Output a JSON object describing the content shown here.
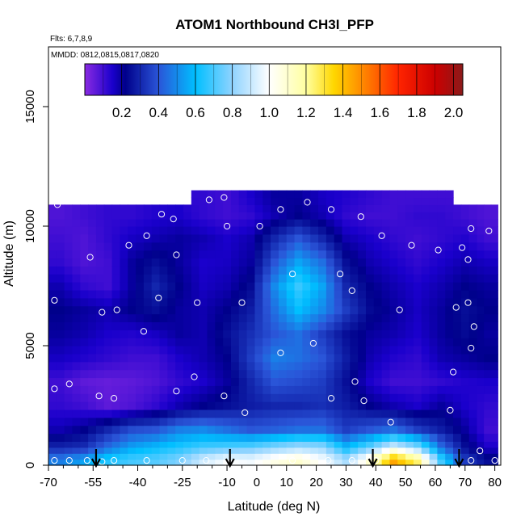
{
  "chart_data": {
    "type": "heatmap",
    "title": "ATOM1 Northbound CH3I_PFP",
    "flights_label": "Flts: 6,7,8,9",
    "dates_label": "MMDD: 0812,0815,0817,0820",
    "xlabel": "Latitude (deg N)",
    "ylabel": "Altitude (m)",
    "xlim": [
      -70,
      82
    ],
    "ylim": [
      0,
      17500
    ],
    "x_ticks": [
      -70,
      -55,
      -40,
      -25,
      -10,
      0,
      10,
      20,
      30,
      40,
      50,
      60,
      70,
      80
    ],
    "x_tick_labels": [
      "-70",
      "-55",
      "-40",
      "-25",
      "-10",
      "0",
      "10",
      "20",
      "30",
      "40",
      "50",
      "60",
      "70",
      "80"
    ],
    "x_minor_ticks": [
      -65,
      -60,
      -50,
      -45,
      -35,
      -30,
      -20,
      -15,
      -5,
      5,
      15,
      25,
      35,
      45,
      55,
      65,
      75
    ],
    "y_ticks": [
      0,
      5000,
      10000,
      15000
    ],
    "y_tick_labels": [
      "0",
      "5000",
      "10000",
      "15000"
    ],
    "colorbar": {
      "range": [
        0.0,
        2.05
      ],
      "ticks": [
        0.2,
        0.4,
        0.6,
        0.8,
        1.0,
        1.2,
        1.4,
        1.6,
        1.8,
        2.0
      ],
      "tick_labels": [
        "0.2",
        "0.4",
        "0.6",
        "0.8",
        "1.0",
        "1.2",
        "1.4",
        "1.6",
        "1.8",
        "2.0"
      ],
      "stops": [
        {
          "v": 0.0,
          "color": "#8a2be2"
        },
        {
          "v": 0.15,
          "color": "#1a00cc"
        },
        {
          "v": 0.22,
          "color": "#00008b"
        },
        {
          "v": 0.4,
          "color": "#2a55d8"
        },
        {
          "v": 0.6,
          "color": "#00bfff"
        },
        {
          "v": 0.8,
          "color": "#8fd3ff"
        },
        {
          "v": 1.0,
          "color": "#ffffff"
        },
        {
          "v": 1.2,
          "color": "#ffffa0"
        },
        {
          "v": 1.35,
          "color": "#ffd700"
        },
        {
          "v": 1.5,
          "color": "#ff8c00"
        },
        {
          "v": 1.7,
          "color": "#ff2400"
        },
        {
          "v": 1.9,
          "color": "#cc0000"
        },
        {
          "v": 2.05,
          "color": "#8b1a1a"
        }
      ]
    },
    "field": {
      "lat_edges": [
        -70,
        -62,
        -54,
        -46,
        -38,
        -30,
        -22,
        -14,
        -6,
        2,
        10,
        18,
        26,
        34,
        42,
        50,
        58,
        66,
        74,
        81
      ],
      "alt_edges": [
        0,
        500,
        1000,
        2000,
        3000,
        4000,
        5000,
        6000,
        7000,
        8000,
        9000,
        10000,
        10900,
        11500
      ],
      "values": [
        [
          0.48,
          0.55,
          0.65,
          0.7,
          0.72,
          0.78,
          0.92,
          1.0,
          0.98,
          1.05,
          1.1,
          1.0,
          0.85,
          1.1,
          1.45,
          1.25,
          0.7,
          0.35,
          0.25
        ],
        [
          0.3,
          0.32,
          0.45,
          0.55,
          0.6,
          0.65,
          0.7,
          0.72,
          0.74,
          0.8,
          0.85,
          0.82,
          0.6,
          0.75,
          0.95,
          0.8,
          0.45,
          0.25,
          0.15
        ],
        [
          0.18,
          0.22,
          0.3,
          0.38,
          0.4,
          0.48,
          0.5,
          0.45,
          0.4,
          0.42,
          0.45,
          0.45,
          0.35,
          0.4,
          0.45,
          0.35,
          0.28,
          0.2,
          0.1
        ],
        [
          0.12,
          0.1,
          0.06,
          0.08,
          0.12,
          0.18,
          0.22,
          0.25,
          0.28,
          0.3,
          0.3,
          0.32,
          0.28,
          0.22,
          0.18,
          0.15,
          0.2,
          0.15,
          0.12
        ],
        [
          0.1,
          0.06,
          0.05,
          0.06,
          0.08,
          0.12,
          0.15,
          0.2,
          0.3,
          0.4,
          0.38,
          0.35,
          0.25,
          0.15,
          0.1,
          0.1,
          0.12,
          0.14,
          0.15
        ],
        [
          0.16,
          0.14,
          0.12,
          0.1,
          0.1,
          0.15,
          0.18,
          0.22,
          0.35,
          0.48,
          0.45,
          0.4,
          0.28,
          0.18,
          0.14,
          0.12,
          0.18,
          0.2,
          0.22
        ],
        [
          0.2,
          0.18,
          0.15,
          0.14,
          0.16,
          0.2,
          0.18,
          0.25,
          0.32,
          0.4,
          0.45,
          0.35,
          0.25,
          0.2,
          0.18,
          0.15,
          0.2,
          0.24,
          0.2
        ],
        [
          0.22,
          0.2,
          0.18,
          0.22,
          0.25,
          0.2,
          0.18,
          0.22,
          0.28,
          0.45,
          0.6,
          0.5,
          0.35,
          0.24,
          0.2,
          0.16,
          0.2,
          0.25,
          0.22
        ],
        [
          0.18,
          0.12,
          0.1,
          0.2,
          0.3,
          0.22,
          0.16,
          0.18,
          0.24,
          0.5,
          0.68,
          0.55,
          0.3,
          0.22,
          0.18,
          0.15,
          0.18,
          0.22,
          0.2
        ],
        [
          0.12,
          0.08,
          0.1,
          0.2,
          0.25,
          0.2,
          0.15,
          0.16,
          0.2,
          0.4,
          0.55,
          0.45,
          0.25,
          0.18,
          0.15,
          0.12,
          0.15,
          0.18,
          0.16
        ],
        [
          0.1,
          0.08,
          0.12,
          0.16,
          0.18,
          0.2,
          0.18,
          0.15,
          0.18,
          0.3,
          0.4,
          0.3,
          0.18,
          0.15,
          0.12,
          0.1,
          0.12,
          0.14,
          0.1
        ],
        [
          0.08,
          0.1,
          0.12,
          0.12,
          0.14,
          0.15,
          0.12,
          0.1,
          0.12,
          0.18,
          0.22,
          0.18,
          0.12,
          0.1,
          0.1,
          0.12,
          0.12,
          0.1,
          0.08
        ],
        [
          null,
          null,
          null,
          null,
          null,
          null,
          0.12,
          0.1,
          0.15,
          0.2,
          0.2,
          0.16,
          0.14,
          0.12,
          0.1,
          0.1,
          0.1,
          null,
          null
        ]
      ]
    },
    "sample_points": [
      [
        -68,
        200
      ],
      [
        -63,
        200
      ],
      [
        -57,
        200
      ],
      [
        -52,
        150
      ],
      [
        -48,
        200
      ],
      [
        -37,
        200
      ],
      [
        -25,
        200
      ],
      [
        -17,
        200
      ],
      [
        12,
        200
      ],
      [
        24,
        200
      ],
      [
        32,
        200
      ],
      [
        40,
        200
      ],
      [
        72,
        200
      ],
      [
        80,
        200
      ],
      [
        75,
        600
      ],
      [
        -68,
        3200
      ],
      [
        -63,
        3400
      ],
      [
        -53,
        2900
      ],
      [
        -48,
        2800
      ],
      [
        -27,
        3100
      ],
      [
        -21,
        3700
      ],
      [
        -11,
        2900
      ],
      [
        -4,
        2200
      ],
      [
        25,
        2800
      ],
      [
        33,
        3500
      ],
      [
        36,
        2700
      ],
      [
        45,
        1800
      ],
      [
        65,
        2300
      ],
      [
        66,
        3900
      ],
      [
        -38,
        5600
      ],
      [
        -5,
        6800
      ],
      [
        8,
        4700
      ],
      [
        19,
        5100
      ],
      [
        32,
        7300
      ],
      [
        48,
        6500
      ],
      [
        67,
        6600
      ],
      [
        71,
        6800
      ],
      [
        73,
        5800
      ],
      [
        72,
        4900
      ],
      [
        -68,
        6900
      ],
      [
        -52,
        6400
      ],
      [
        -47,
        6500
      ],
      [
        -33,
        7000
      ],
      [
        -20,
        6800
      ],
      [
        -56,
        8700
      ],
      [
        -43,
        9200
      ],
      [
        -37,
        9600
      ],
      [
        -27,
        8800
      ],
      [
        -10,
        10000
      ],
      [
        1,
        10000
      ],
      [
        12,
        8000
      ],
      [
        28,
        8000
      ],
      [
        42,
        9600
      ],
      [
        52,
        9200
      ],
      [
        61,
        9000
      ],
      [
        69,
        9100
      ],
      [
        71,
        8600
      ],
      [
        78,
        9800
      ],
      [
        72,
        9900
      ],
      [
        -67,
        10900
      ],
      [
        -32,
        10500
      ],
      [
        -28,
        10300
      ],
      [
        -25,
        11100
      ],
      [
        -16,
        11100
      ],
      [
        -11,
        11200
      ],
      [
        8,
        10700
      ],
      [
        17,
        11000
      ],
      [
        25,
        10700
      ],
      [
        35,
        10400
      ],
      [
        70,
        11100
      ],
      [
        30,
        11800
      ]
    ],
    "arrows_lat": [
      -54,
      -9,
      39,
      68
    ]
  }
}
